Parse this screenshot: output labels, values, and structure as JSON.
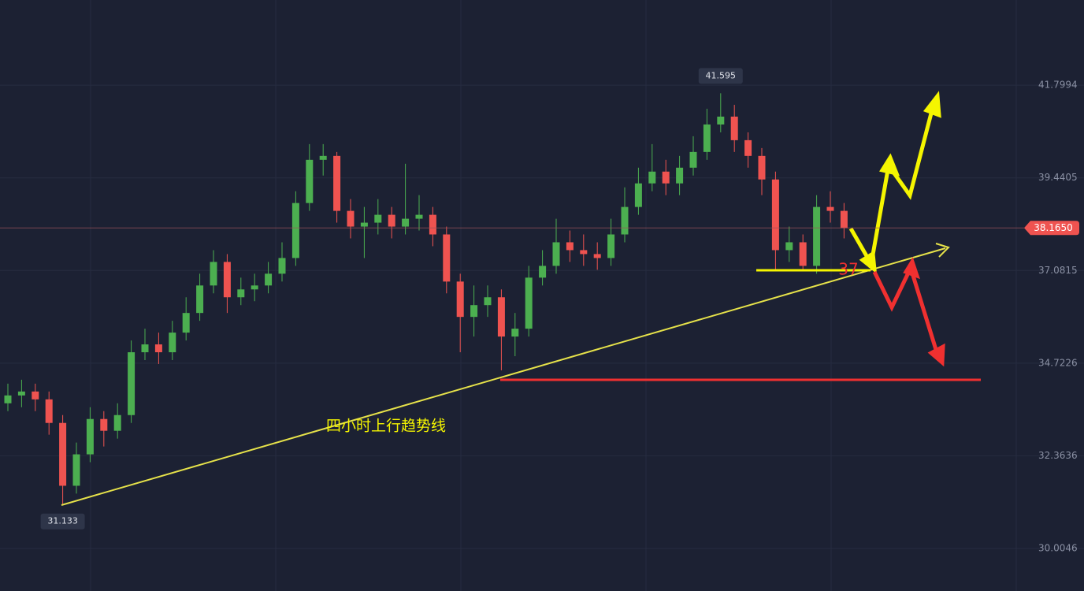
{
  "chart_data": {
    "type": "candlestick",
    "ylim": [
      28.92,
      43.97
    ],
    "yticks": [
      41.7994,
      39.4405,
      37.0815,
      34.7226,
      32.3636,
      30.0046
    ],
    "grid": true,
    "up_color": "#4caf50",
    "down_color": "#ef5350",
    "open": [
      33.7,
      33.9,
      34.0,
      33.8,
      33.2,
      31.6,
      32.4,
      33.3,
      33.0,
      33.4,
      35.0,
      35.2,
      35.0,
      35.5,
      36.0,
      36.7,
      37.3,
      36.4,
      36.6,
      36.7,
      37.0,
      37.4,
      38.8,
      39.9,
      40.0,
      38.6,
      38.2,
      38.3,
      38.5,
      38.2,
      38.4,
      38.5,
      38.0,
      36.8,
      35.9,
      36.2,
      36.4,
      35.4,
      35.6,
      36.9,
      37.2,
      37.8,
      37.6,
      37.5,
      37.4,
      38.0,
      38.7,
      39.3,
      39.6,
      39.3,
      39.7,
      40.1,
      40.8,
      41.0,
      40.4,
      40.0,
      39.4,
      37.6,
      37.8,
      37.2,
      38.7,
      38.6
    ],
    "high": [
      34.2,
      34.3,
      34.2,
      34.0,
      33.4,
      32.7,
      33.6,
      33.5,
      33.7,
      35.3,
      35.6,
      35.5,
      35.8,
      36.4,
      37.0,
      37.6,
      37.5,
      36.9,
      37.0,
      37.3,
      37.8,
      39.1,
      40.3,
      40.3,
      40.1,
      38.9,
      38.7,
      38.9,
      38.7,
      39.8,
      39.0,
      38.7,
      38.2,
      37.0,
      36.7,
      36.7,
      36.6,
      36.0,
      37.2,
      37.6,
      38.4,
      38.1,
      38.0,
      37.8,
      38.4,
      39.2,
      39.7,
      40.3,
      39.9,
      40.0,
      40.5,
      41.2,
      41.595,
      41.3,
      40.6,
      40.2,
      39.6,
      38.2,
      38.0,
      39.0,
      39.1,
      38.8
    ],
    "low": [
      33.5,
      33.6,
      33.5,
      32.9,
      31.133,
      31.4,
      32.2,
      32.6,
      32.8,
      33.2,
      34.8,
      34.7,
      34.8,
      35.3,
      35.8,
      36.5,
      36.0,
      36.2,
      36.3,
      36.5,
      36.8,
      37.2,
      38.6,
      39.5,
      38.3,
      37.9,
      37.4,
      38.0,
      37.9,
      38.0,
      38.1,
      37.7,
      36.5,
      35.0,
      35.4,
      35.9,
      34.54,
      34.9,
      35.4,
      36.7,
      37.0,
      37.3,
      37.2,
      37.1,
      37.2,
      37.8,
      38.5,
      39.1,
      39.0,
      39.0,
      39.5,
      39.9,
      40.6,
      40.1,
      39.7,
      39.0,
      37.1,
      37.3,
      37.1,
      37.0,
      38.3,
      37.9
    ],
    "close": [
      33.9,
      34.0,
      33.8,
      33.2,
      31.6,
      32.4,
      33.3,
      33.0,
      33.4,
      35.0,
      35.2,
      35.0,
      35.5,
      36.0,
      36.7,
      37.3,
      36.4,
      36.6,
      36.7,
      37.0,
      37.4,
      38.8,
      39.9,
      40.0,
      38.6,
      38.2,
      38.3,
      38.5,
      38.2,
      38.4,
      38.5,
      38.0,
      36.8,
      35.9,
      36.2,
      36.4,
      35.4,
      35.6,
      36.9,
      37.2,
      37.8,
      37.6,
      37.5,
      37.4,
      38.0,
      38.7,
      39.3,
      39.6,
      39.3,
      39.7,
      40.1,
      40.8,
      41.0,
      40.4,
      40.0,
      39.4,
      37.6,
      37.8,
      37.2,
      38.7,
      38.6,
      38.165
    ],
    "last_price": {
      "value": 38.165,
      "label": "38.1650"
    },
    "trend_label": "四小时上行趋势线",
    "level_label": "37"
  }
}
